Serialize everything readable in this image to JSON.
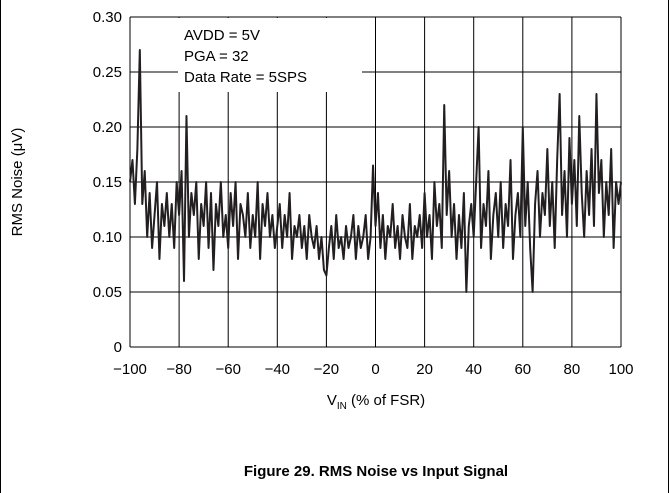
{
  "chart_data": {
    "type": "line",
    "ylabel": "RMS Noise (μV)",
    "xlabel": [
      "V",
      "IN",
      " (% of FSR)"
    ],
    "caption": "Figure 29. RMS Noise vs Input Signal",
    "annotations": [
      "AVDD = 5V",
      "PGA = 32",
      "Data Rate = 5SPS"
    ],
    "color": "#231f20",
    "grid": true,
    "xlim": [
      -100,
      100
    ],
    "ylim": [
      0,
      0.3
    ],
    "xticks": [
      {
        "value": -100,
        "label": "−100"
      },
      {
        "value": -80,
        "label": "−80"
      },
      {
        "value": -60,
        "label": "−60"
      },
      {
        "value": -40,
        "label": "−40"
      },
      {
        "value": -20,
        "label": "−20"
      },
      0,
      20,
      40,
      60,
      80,
      100
    ],
    "yticks": [
      0,
      0.05,
      {
        "value": 0.1,
        "label": "0.10"
      },
      0.15,
      {
        "value": 0.2,
        "label": "0.20"
      },
      0.25,
      {
        "value": 0.3,
        "label": "0.30"
      }
    ],
    "x": [
      -100,
      -99,
      -98,
      -97,
      -96,
      -95,
      -94,
      -93,
      -92,
      -91,
      -90,
      -89,
      -88,
      -87,
      -86,
      -85,
      -84,
      -83,
      -82,
      -81,
      -80,
      -79,
      -78,
      -77,
      -76,
      -75,
      -74,
      -73,
      -72,
      -71,
      -70,
      -69,
      -68,
      -67,
      -66,
      -65,
      -64,
      -63,
      -62,
      -61,
      -60,
      -59,
      -58,
      -57,
      -56,
      -55,
      -54,
      -53,
      -52,
      -51,
      -50,
      -49,
      -48,
      -47,
      -46,
      -45,
      -44,
      -43,
      -42,
      -41,
      -40,
      -39,
      -38,
      -37,
      -36,
      -35,
      -34,
      -33,
      -32,
      -31,
      -30,
      -29,
      -28,
      -27,
      -26,
      -25,
      -24,
      -23,
      -22,
      -21,
      -20,
      -19,
      -18,
      -17,
      -16,
      -15,
      -14,
      -13,
      -12,
      -11,
      -10,
      -9,
      -8,
      -7,
      -6,
      -5,
      -4,
      -3,
      -2,
      -1,
      0,
      1,
      2,
      3,
      4,
      5,
      6,
      7,
      8,
      9,
      10,
      11,
      12,
      13,
      14,
      15,
      16,
      17,
      18,
      19,
      20,
      21,
      22,
      23,
      24,
      25,
      26,
      27,
      28,
      29,
      30,
      31,
      32,
      33,
      34,
      35,
      36,
      37,
      38,
      39,
      40,
      41,
      42,
      43,
      44,
      45,
      46,
      47,
      48,
      49,
      50,
      51,
      52,
      53,
      54,
      55,
      56,
      57,
      58,
      59,
      60,
      61,
      62,
      63,
      64,
      65,
      66,
      67,
      68,
      69,
      70,
      71,
      72,
      73,
      74,
      75,
      76,
      77,
      78,
      79,
      80,
      81,
      82,
      83,
      84,
      85,
      86,
      87,
      88,
      89,
      90,
      91,
      92,
      93,
      94,
      95,
      96,
      97,
      98,
      99,
      100
    ],
    "values": [
      0.15,
      0.17,
      0.13,
      0.18,
      0.27,
      0.13,
      0.16,
      0.1,
      0.14,
      0.09,
      0.12,
      0.15,
      0.08,
      0.13,
      0.11,
      0.14,
      0.1,
      0.13,
      0.09,
      0.15,
      0.12,
      0.16,
      0.06,
      0.21,
      0.1,
      0.14,
      0.12,
      0.15,
      0.08,
      0.13,
      0.11,
      0.15,
      0.09,
      0.14,
      0.07,
      0.13,
      0.11,
      0.15,
      0.1,
      0.12,
      0.09,
      0.14,
      0.11,
      0.15,
      0.08,
      0.13,
      0.12,
      0.1,
      0.14,
      0.09,
      0.12,
      0.1,
      0.15,
      0.08,
      0.13,
      0.11,
      0.14,
      0.1,
      0.12,
      0.09,
      0.11,
      0.13,
      0.09,
      0.12,
      0.1,
      0.14,
      0.08,
      0.11,
      0.1,
      0.12,
      0.09,
      0.11,
      0.08,
      0.12,
      0.1,
      0.09,
      0.11,
      0.08,
      0.1,
      0.07,
      0.065,
      0.09,
      0.11,
      0.08,
      0.12,
      0.09,
      0.1,
      0.08,
      0.11,
      0.09,
      0.1,
      0.12,
      0.08,
      0.11,
      0.09,
      0.1,
      0.12,
      0.08,
      0.1,
      0.165,
      0.11,
      0.14,
      0.09,
      0.12,
      0.08,
      0.11,
      0.1,
      0.13,
      0.09,
      0.11,
      0.08,
      0.12,
      0.1,
      0.09,
      0.13,
      0.08,
      0.11,
      0.1,
      0.12,
      0.09,
      0.14,
      0.1,
      0.12,
      0.08,
      0.15,
      0.11,
      0.13,
      0.09,
      0.22,
      0.12,
      0.16,
      0.1,
      0.13,
      0.08,
      0.12,
      0.09,
      0.14,
      0.05,
      0.11,
      0.13,
      0.1,
      0.15,
      0.2,
      0.09,
      0.13,
      0.11,
      0.16,
      0.08,
      0.12,
      0.14,
      0.1,
      0.15,
      0.09,
      0.13,
      0.11,
      0.17,
      0.08,
      0.12,
      0.14,
      0.1,
      0.2,
      0.11,
      0.15,
      0.09,
      0.05,
      0.13,
      0.16,
      0.1,
      0.14,
      0.12,
      0.18,
      0.11,
      0.15,
      0.09,
      0.17,
      0.23,
      0.12,
      0.16,
      0.1,
      0.19,
      0.13,
      0.17,
      0.11,
      0.21,
      0.14,
      0.1,
      0.16,
      0.12,
      0.18,
      0.11,
      0.23,
      0.14,
      0.17,
      0.1,
      0.15,
      0.12,
      0.18,
      0.09,
      0.15,
      0.13,
      0.15
    ]
  }
}
